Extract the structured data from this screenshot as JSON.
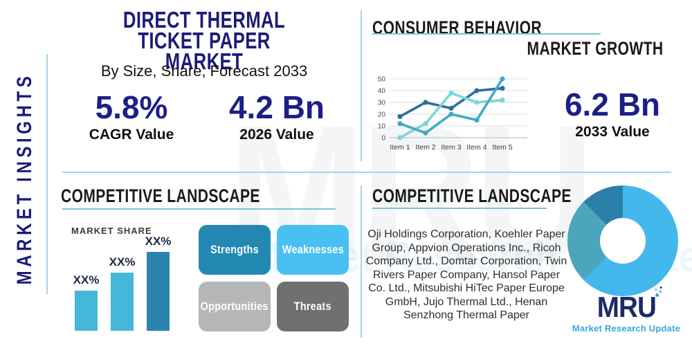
{
  "brand": {
    "logo_text": "MRU",
    "logo_tagline": "Market Research Update",
    "watermark_text": "MRU",
    "watermark_tagline": "Market Research Update",
    "navy": "#1b1b78",
    "light_blue": "#35a8e0"
  },
  "sidebar": {
    "vertical_label": "MARKET INSIGHTS"
  },
  "header": {
    "title_line1": "DIRECT THERMAL TICKET PAPER",
    "title_line2": "MARKET",
    "subtitle": "By Size, Share, Forecast 2033",
    "stats": [
      {
        "value": "5.8%",
        "label": "CAGR Value"
      },
      {
        "value": "4.2 Bn",
        "label": "2026 Value"
      }
    ]
  },
  "growth": {
    "heading": "CONSUMER BEHAVIOR",
    "subheading": "MARKET GROWTH",
    "stat": {
      "value": "6.2 Bn",
      "label": "2033 Value"
    }
  },
  "competitive_left": {
    "heading": "COMPETITIVE LANDSCAPE",
    "chart_title": "MARKET SHARE",
    "swot": [
      {
        "label": "Strengths",
        "color": "#2389b3"
      },
      {
        "label": "Weaknesses",
        "color": "#49c0f2"
      },
      {
        "label": "Opportunities",
        "color": "#b4b6b8"
      },
      {
        "label": "Threats",
        "color": "#6e7071"
      }
    ]
  },
  "competitive_right": {
    "heading": "COMPETITIVE LANDSCAPE",
    "companies": "Oji Holdings Corporation, Koehler Paper Group, Appvion Operations Inc., Ricoh Company Ltd., Domtar Corporation, Twin Rivers Paper Company, Hansol Paper Co. Ltd., Mitsubishi HiTec Paper Europe GmbH, Jujo Thermal Ltd., Henan Senzhong Thermal Paper"
  },
  "chart_data": [
    {
      "type": "line",
      "title": "Consumer Behavior / Market Growth trend",
      "x": [
        "Item 1",
        "Item 2",
        "Item 3",
        "Item 4",
        "Item 5"
      ],
      "ylim": [
        0,
        50
      ],
      "yticks": [
        0,
        10,
        20,
        30,
        40,
        50
      ],
      "grid": true,
      "legend": false,
      "series": [
        {
          "name": "dark-blue",
          "color": "#2d6f99",
          "values": [
            18,
            30,
            25,
            40,
            42
          ]
        },
        {
          "name": "light-teal",
          "color": "#7cd6d8",
          "values": [
            0,
            12,
            38,
            30,
            32
          ]
        },
        {
          "name": "medium-teal",
          "color": "#41aac6",
          "values": [
            12,
            4,
            20,
            15,
            50
          ]
        }
      ]
    },
    {
      "type": "bar",
      "title": "MARKET SHARE",
      "categories": [
        "bar-1",
        "bar-2",
        "bar-3"
      ],
      "values": [
        29,
        42,
        57
      ],
      "labels": [
        "XX%",
        "XX%",
        "XX%"
      ],
      "colors": [
        "#45b7d8",
        "#45b7d8",
        "#2a84ae"
      ],
      "ylim": [
        0,
        60
      ]
    },
    {
      "type": "donut",
      "title": "Company share donut",
      "slices": [
        {
          "name": "primary",
          "value": 62.5,
          "color": "#44b8ec"
        },
        {
          "name": "secondary",
          "value": 25,
          "color": "#4aa5bd"
        },
        {
          "name": "tertiary",
          "value": 12.5,
          "color": "#2c7fa9"
        }
      ]
    }
  ]
}
